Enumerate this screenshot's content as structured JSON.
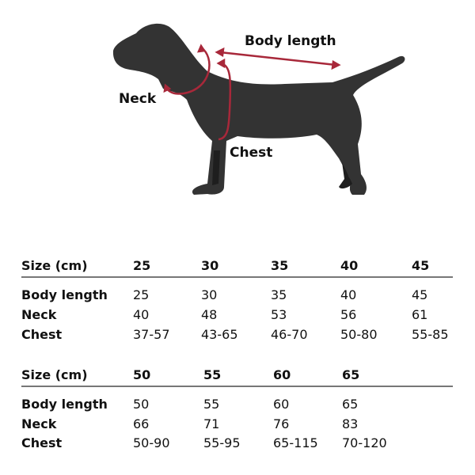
{
  "diagram": {
    "labels": {
      "body_length": "Body length",
      "neck": "Neck",
      "chest": "Chest"
    },
    "colors": {
      "silhouette": "#333333",
      "measure_lines": "#a8283a"
    }
  },
  "tables": [
    {
      "header_label": "Size (cm)",
      "sizes": [
        "25",
        "30",
        "35",
        "40",
        "45"
      ],
      "rows": [
        {
          "label": "Body length",
          "values": [
            "25",
            "30",
            "35",
            "40",
            "45"
          ]
        },
        {
          "label": "Neck",
          "values": [
            "40",
            "48",
            "53",
            "56",
            "61"
          ]
        },
        {
          "label": "Chest",
          "values": [
            "37-57",
            "43-65",
            "46-70",
            "50-80",
            "55-85"
          ]
        }
      ]
    },
    {
      "header_label": "Size (cm)",
      "sizes": [
        "50",
        "55",
        "60",
        "65"
      ],
      "rows": [
        {
          "label": "Body length",
          "values": [
            "50",
            "55",
            "60",
            "65"
          ]
        },
        {
          "label": "Neck",
          "values": [
            "66",
            "71",
            "76",
            "83"
          ]
        },
        {
          "label": "Chest",
          "values": [
            "50-90",
            "55-95",
            "65-115",
            "70-120"
          ]
        }
      ]
    }
  ]
}
